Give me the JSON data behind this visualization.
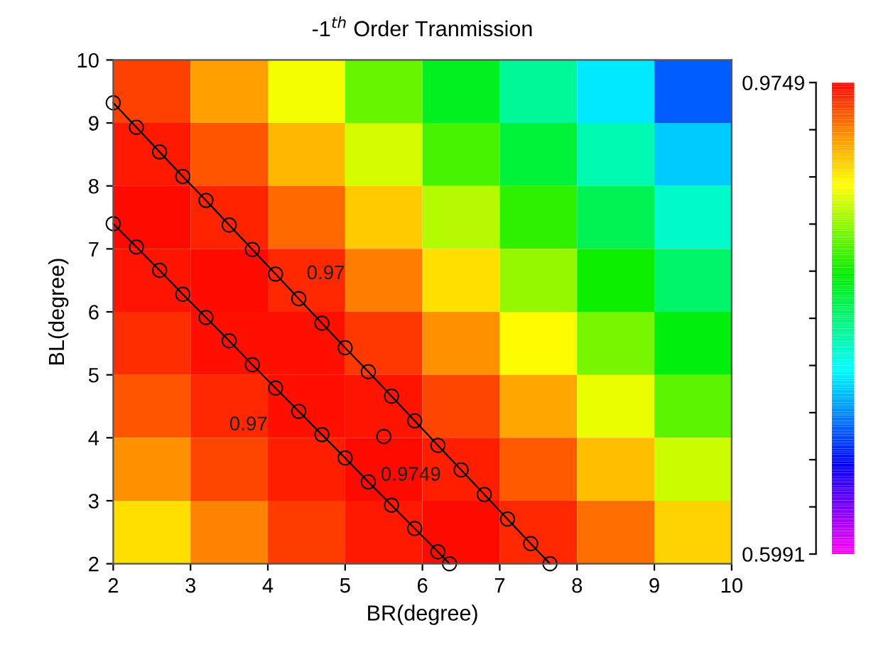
{
  "chart_data": {
    "type": "heatmap",
    "title": "-1$^{th}$ Order Tranmission",
    "xlabel": "BR(degree)",
    "ylabel": "BL(degree)",
    "cells": [
      [
        0.955,
        0.927,
        0.889,
        0.849,
        0.811,
        0.776,
        0.74,
        0.698
      ],
      [
        0.967,
        0.949,
        0.919,
        0.88,
        0.841,
        0.804,
        0.769,
        0.731
      ],
      [
        0.971,
        0.964,
        0.944,
        0.911,
        0.871,
        0.833,
        0.797,
        0.761
      ],
      [
        0.969,
        0.971,
        0.962,
        0.938,
        0.903,
        0.863,
        0.825,
        0.789
      ],
      [
        0.961,
        0.97,
        0.97,
        0.958,
        0.932,
        0.894,
        0.854,
        0.817
      ],
      [
        0.949,
        0.963,
        0.97,
        0.968,
        0.954,
        0.924,
        0.886,
        0.846
      ],
      [
        0.931,
        0.953,
        0.966,
        0.971,
        0.966,
        0.948,
        0.916,
        0.877
      ],
      [
        0.904,
        0.936,
        0.956,
        0.967,
        0.971,
        0.963,
        0.942,
        0.908
      ]
    ],
    "clim": [
      0.5991,
      0.9749
    ],
    "cticks": [
      0.5991,
      {
        "value": 0.6367,
        "label": null
      },
      {
        "value": 0.6743,
        "label": null
      },
      {
        "value": 0.7118,
        "label": null
      },
      {
        "value": 0.7494,
        "label": null
      },
      {
        "value": 0.787,
        "label": null
      },
      {
        "value": 0.8246,
        "label": null
      },
      {
        "value": 0.8621,
        "label": null
      },
      {
        "value": 0.8997,
        "label": null
      },
      {
        "value": 0.9373,
        "label": null
      },
      0.9749
    ],
    "xlim": [
      2,
      10
    ],
    "ylim": [
      2,
      10
    ],
    "xticks": [
      2,
      3,
      4,
      5,
      6,
      7,
      8,
      9,
      10
    ],
    "yticks": [
      2,
      3,
      4,
      5,
      6,
      7,
      8,
      9,
      10
    ],
    "series": [
      {
        "type": "line",
        "color": "#000000",
        "marker": "circle",
        "x": [
          2.0,
          2.3,
          2.6,
          2.9,
          3.2,
          3.5,
          3.8,
          4.1,
          4.4,
          4.7,
          5.0,
          5.3,
          5.6,
          5.9,
          6.2,
          6.5,
          6.8,
          7.1,
          7.4,
          7.65
        ],
        "values": [
          9.32,
          8.93,
          8.54,
          8.15,
          7.77,
          7.38,
          6.99,
          6.6,
          6.21,
          5.82,
          5.43,
          5.05,
          4.66,
          4.27,
          3.88,
          3.49,
          3.1,
          2.71,
          2.32,
          2.0
        ]
      },
      {
        "type": "line",
        "color": "#000000",
        "marker": "circle",
        "x": [
          2.0,
          2.3,
          2.6,
          2.9,
          3.2,
          3.5,
          3.8,
          4.1,
          4.4,
          4.7,
          5.0,
          5.3,
          5.6,
          5.9,
          6.2,
          6.35
        ],
        "values": [
          7.4,
          7.03,
          6.66,
          6.28,
          5.91,
          5.54,
          5.16,
          4.79,
          4.42,
          4.05,
          3.68,
          3.3,
          2.93,
          2.56,
          2.19,
          2.0
        ]
      },
      {
        "type": "scatter",
        "color": "#000000",
        "marker": "circle",
        "x": [
          5.5
        ],
        "values": [
          4.02
        ]
      }
    ],
    "annotations": [
      {
        "text": "0.97",
        "x": 4.7,
        "y": 5.82
      },
      {
        "text": "0.97",
        "x": 4.4,
        "y": 4.42
      },
      {
        "text": "0.9749",
        "x": 5.5,
        "y": 4.02
      }
    ],
    "grid": false,
    "legend": false
  }
}
